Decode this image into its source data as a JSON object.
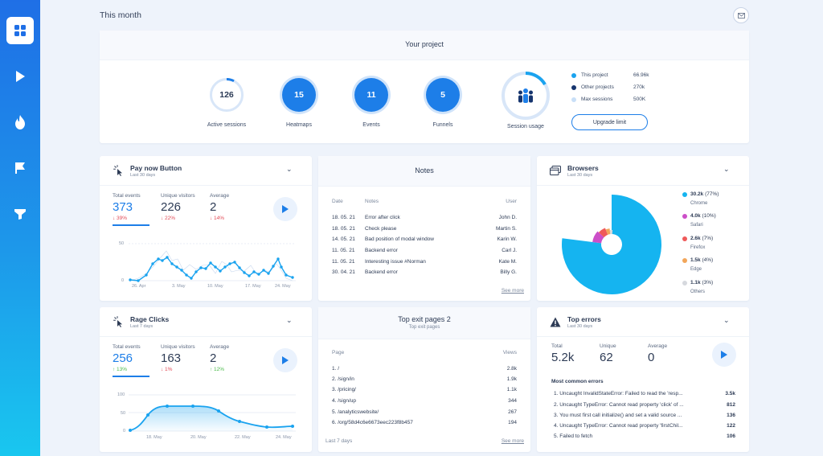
{
  "header": {
    "title": "This month"
  },
  "project": {
    "title": "Your project",
    "metrics": [
      {
        "value": "126",
        "label": "Active sessions"
      },
      {
        "value": "15",
        "label": "Heatmaps"
      },
      {
        "value": "11",
        "label": "Events"
      },
      {
        "value": "5",
        "label": "Funnels"
      },
      {
        "value": "",
        "label": "Session usage"
      }
    ],
    "legend": [
      {
        "label": "This project",
        "value": "66.96k",
        "color": "#1aa3ef"
      },
      {
        "label": "Other projects",
        "value": "270k",
        "color": "#16356e"
      },
      {
        "label": "Max sessions",
        "value": "500K",
        "color": "#c8dff7"
      }
    ],
    "upgrade_label": "Upgrade limit"
  },
  "pay_now": {
    "title": "Pay now Button",
    "subtitle": "Last 30 days",
    "stats": [
      {
        "label": "Total events",
        "value": "373",
        "delta": "↓ 39%"
      },
      {
        "label": "Unique visitors",
        "value": "226",
        "delta": "↓ 22%"
      },
      {
        "label": "Average",
        "value": "2",
        "delta": "↓ 14%"
      }
    ],
    "y_ticks": [
      "50",
      "0"
    ],
    "x_ticks": [
      "26. Apr",
      "3. May",
      "10. May",
      "17. May",
      "24. May"
    ]
  },
  "notes": {
    "title": "Notes",
    "headers": {
      "date": "Date",
      "notes": "Notes",
      "user": "User"
    },
    "rows": [
      {
        "date": "18. 05. 21",
        "note": "Error after click",
        "user": "John D."
      },
      {
        "date": "18. 05. 21",
        "note": "Check please",
        "user": "Martin S."
      },
      {
        "date": "14. 05. 21",
        "note": "Bad position of modal window",
        "user": "Karin W."
      },
      {
        "date": "11. 05. 21",
        "note": "Backend error",
        "user": "Carl J."
      },
      {
        "date": "11. 05. 21",
        "note": "Interesting issue #Norman",
        "user": "Kate M."
      },
      {
        "date": "30. 04. 21",
        "note": "Backend error",
        "user": "Billy G."
      }
    ],
    "see_more": "See more"
  },
  "browsers": {
    "title": "Browsers",
    "subtitle": "Last 30 days",
    "items": [
      {
        "value": "30.2k",
        "pct": "(77%)",
        "name": "Chrome",
        "color": "#15b4f0",
        "share": 0.77
      },
      {
        "value": "4.0k",
        "pct": "(10%)",
        "name": "Safari",
        "color": "#cc4fc8",
        "share": 0.1
      },
      {
        "value": "2.6k",
        "pct": "(7%)",
        "name": "Firefox",
        "color": "#ef5a5a",
        "share": 0.07
      },
      {
        "value": "1.5k",
        "pct": "(4%)",
        "name": "Edge",
        "color": "#f2a65a",
        "share": 0.04
      },
      {
        "value": "1.1k",
        "pct": "(3%)",
        "name": "Others",
        "color": "#d6d9de",
        "share": 0.03
      }
    ]
  },
  "rage": {
    "title": "Rage Clicks",
    "subtitle": "Last 7 days",
    "stats": [
      {
        "label": "Total events",
        "value": "256",
        "delta": "↑ 13%"
      },
      {
        "label": "Unique visitors",
        "value": "163",
        "delta": "↓ 1%"
      },
      {
        "label": "Average",
        "value": "2",
        "delta": "↑ 12%"
      }
    ],
    "y_ticks": [
      "100",
      "50",
      "0"
    ],
    "x_ticks": [
      "18. May",
      "20. May",
      "22. May",
      "24. May"
    ]
  },
  "exit_pages": {
    "title": "Top exit pages 2",
    "subtitle": "Top exit pages",
    "headers": {
      "page": "Page",
      "views": "Views"
    },
    "rows": [
      {
        "page": "1. /",
        "views": "2.8k"
      },
      {
        "page": "2. /sign/in",
        "views": "1.9k"
      },
      {
        "page": "3. /pricing/",
        "views": "1.1k"
      },
      {
        "page": "4. /sign/up",
        "views": "344"
      },
      {
        "page": "5. /analyticswebsite/",
        "views": "267"
      },
      {
        "page": "6. /org/58d4c6e6673eec223f8b457",
        "views": "194"
      }
    ],
    "footer": "Last 7 days",
    "see_more": "See more"
  },
  "errors": {
    "title": "Top errors",
    "subtitle": "Last 30 days",
    "stats": [
      {
        "label": "Total",
        "value": "5.2k"
      },
      {
        "label": "Unique",
        "value": "62"
      },
      {
        "label": "Average",
        "value": "0"
      }
    ],
    "list_title": "Most common errors",
    "rows": [
      {
        "text": "1. Uncaught InvalidStateError: Failed to read the 'resp...",
        "count": "3.5k"
      },
      {
        "text": "2. Uncaught TypeError: Cannot read property 'click' of ...",
        "count": "812"
      },
      {
        "text": "3. You must first call initialize() and set a valid source ...",
        "count": "136"
      },
      {
        "text": "4. Uncaught TypeError: Cannot read property 'firstChil...",
        "count": "122"
      },
      {
        "text": "5. Failed to fetch",
        "count": "106"
      }
    ]
  }
}
